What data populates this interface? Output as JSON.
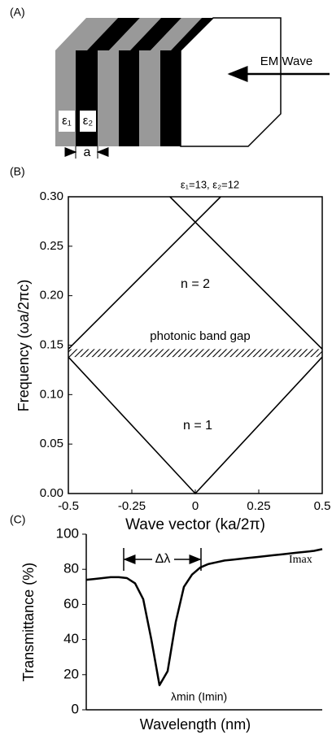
{
  "diagram": {
    "label": "(A)",
    "layers": [
      "ε₁",
      "ε₂"
    ],
    "wave": "EM Wave",
    "period": "a"
  },
  "chart_data": [
    {
      "type": "line",
      "label": "(B)",
      "title": "ε₁=13, ε₂=12",
      "xlabel": "Wave vector (ka/2π)",
      "ylabel": "Frequency (ωa/2πc)",
      "xlim": [
        -0.5,
        0.5
      ],
      "ylim": [
        0,
        0.3
      ],
      "xticks": [
        -0.5,
        -0.25,
        0,
        0.25,
        0.5
      ],
      "yticks": [
        {
          "value": 0,
          "label": "0.00"
        },
        0.05,
        {
          "value": 0.1,
          "label": "0.10"
        },
        0.15,
        {
          "value": 0.2,
          "label": "0.20"
        },
        0.25,
        {
          "value": 0.3,
          "label": "0.30"
        }
      ],
      "series": [
        {
          "color": "#000000",
          "x": [
            -0.5,
            0,
            0.5
          ],
          "values": [
            0.138,
            0,
            0.138
          ]
        },
        {
          "color": "#000000",
          "x": [
            -0.5,
            0.1
          ],
          "values": [
            0.146,
            0.3
          ]
        },
        {
          "color": "#000000",
          "x": [
            -0.1,
            0.5
          ],
          "values": [
            0.3,
            0.146
          ]
        }
      ],
      "band_gap": {
        "label": "photonic band gap",
        "range": [
          0.138,
          0.146
        ]
      },
      "annotations": [
        "n = 2",
        "n = 1"
      ]
    },
    {
      "type": "line",
      "label": "(C)",
      "xlabel": "Wavelength (nm)",
      "ylabel": "Transmittance (%)",
      "ylim": [
        0,
        100
      ],
      "yticks": [
        0,
        20,
        40,
        60,
        80,
        100
      ],
      "categories": [
        null,
        null,
        null,
        null,
        null,
        null,
        null,
        null,
        null,
        null,
        null,
        null,
        null,
        null,
        null,
        null,
        null,
        null,
        null,
        null,
        null,
        null,
        null,
        null,
        null,
        null,
        null,
        null,
        null,
        null
      ],
      "series": [
        {
          "color": "#000000",
          "values": [
            74,
            74.5,
            75,
            75.5,
            75.5,
            75,
            72,
            63,
            40,
            14,
            22,
            50,
            70,
            77,
            81,
            83,
            84,
            85,
            85.5,
            86,
            86.5,
            87,
            87.5,
            88,
            88.5,
            89,
            89.5,
            90,
            90.5,
            91.5
          ]
        }
      ],
      "annotations": [
        "Δλ",
        "λmin (Imin)",
        "Imax"
      ]
    }
  ]
}
